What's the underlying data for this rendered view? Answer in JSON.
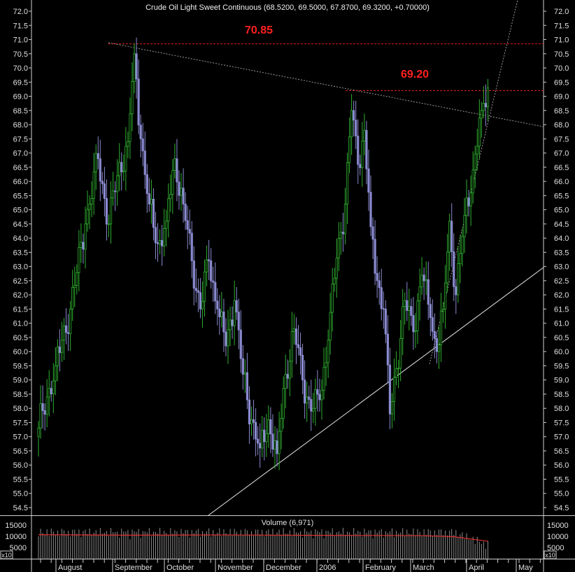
{
  "chart_data": {
    "type": "candlestick",
    "title": "Crude Oil Light Sweet Continuous (68.5200, 69.5000, 67.8700, 69.3200, +0.70000)",
    "y_ticks": [
      "72.0",
      "71.5",
      "71.0",
      "70.5",
      "70.0",
      "69.5",
      "69.0",
      "68.5",
      "68.0",
      "67.5",
      "67.0",
      "66.5",
      "66.0",
      "65.5",
      "65.0",
      "64.5",
      "64.0",
      "63.5",
      "63.0",
      "62.5",
      "62.0",
      "61.5",
      "61.0",
      "60.5",
      "60.0",
      "59.5",
      "59.0",
      "58.5",
      "58.0",
      "57.5",
      "57.0",
      "56.5",
      "56.0",
      "55.5",
      "55.0",
      "54.5"
    ],
    "ylim": [
      54.2,
      72.2
    ],
    "months": [
      "August",
      "September",
      "October",
      "November",
      "December",
      "2006",
      "February",
      "March",
      "April",
      "May"
    ],
    "annotations": [
      {
        "label": "70.85",
        "value": 70.85
      },
      {
        "label": "69.20",
        "value": 69.2
      }
    ],
    "price_anchors": [
      {
        "d": 0,
        "v": 57.3
      },
      {
        "d": 8,
        "v": 59.5
      },
      {
        "d": 15,
        "v": 61.5
      },
      {
        "d": 22,
        "v": 64.5
      },
      {
        "d": 28,
        "v": 66.8
      },
      {
        "d": 33,
        "v": 64.5
      },
      {
        "d": 37,
        "v": 66.2
      },
      {
        "d": 42,
        "v": 67.4
      },
      {
        "d": 45,
        "v": 70.5
      },
      {
        "d": 48,
        "v": 67.5
      },
      {
        "d": 52,
        "v": 65.2
      },
      {
        "d": 56,
        "v": 63.8
      },
      {
        "d": 60,
        "v": 64.6
      },
      {
        "d": 64,
        "v": 66.8
      },
      {
        "d": 68,
        "v": 65.2
      },
      {
        "d": 72,
        "v": 63.2
      },
      {
        "d": 76,
        "v": 61.5
      },
      {
        "d": 80,
        "v": 63.2
      },
      {
        "d": 84,
        "v": 61.5
      },
      {
        "d": 88,
        "v": 60.2
      },
      {
        "d": 92,
        "v": 61.8
      },
      {
        "d": 96,
        "v": 59.2
      },
      {
        "d": 100,
        "v": 57.6
      },
      {
        "d": 104,
        "v": 56.6
      },
      {
        "d": 108,
        "v": 57.6
      },
      {
        "d": 112,
        "v": 56.4
      },
      {
        "d": 116,
        "v": 59.2
      },
      {
        "d": 120,
        "v": 60.8
      },
      {
        "d": 124,
        "v": 59.0
      },
      {
        "d": 128,
        "v": 57.9
      },
      {
        "d": 132,
        "v": 58.3
      },
      {
        "d": 136,
        "v": 60.4
      },
      {
        "d": 140,
        "v": 63.3
      },
      {
        "d": 144,
        "v": 65.2
      },
      {
        "d": 147,
        "v": 68.5
      },
      {
        "d": 150,
        "v": 66.6
      },
      {
        "d": 153,
        "v": 67.8
      },
      {
        "d": 156,
        "v": 64.4
      },
      {
        "d": 159,
        "v": 62.5
      },
      {
        "d": 162,
        "v": 61.5
      },
      {
        "d": 165,
        "v": 57.8
      },
      {
        "d": 168,
        "v": 59.4
      },
      {
        "d": 172,
        "v": 61.8
      },
      {
        "d": 176,
        "v": 60.7
      },
      {
        "d": 180,
        "v": 62.7
      },
      {
        "d": 184,
        "v": 61.2
      },
      {
        "d": 187,
        "v": 60.0
      },
      {
        "d": 190,
        "v": 61.5
      },
      {
        "d": 193,
        "v": 64.6
      },
      {
        "d": 196,
        "v": 62.0
      },
      {
        "d": 200,
        "v": 64.8
      },
      {
        "d": 204,
        "v": 66.4
      },
      {
        "d": 208,
        "v": 68.5
      },
      {
        "d": 211,
        "v": 69.3
      }
    ],
    "volume": {
      "label": "Volume (6,971)",
      "y_ticks": [
        "15000",
        "10000",
        "5000"
      ],
      "scale_label": "x10",
      "ylim": [
        0,
        17500
      ],
      "moving_average": [
        {
          "d": 0,
          "v": 10700
        },
        {
          "d": 40,
          "v": 10500
        },
        {
          "d": 90,
          "v": 10600
        },
        {
          "d": 140,
          "v": 10400
        },
        {
          "d": 180,
          "v": 10300
        },
        {
          "d": 195,
          "v": 9800
        },
        {
          "d": 211,
          "v": 7800
        }
      ]
    }
  }
}
